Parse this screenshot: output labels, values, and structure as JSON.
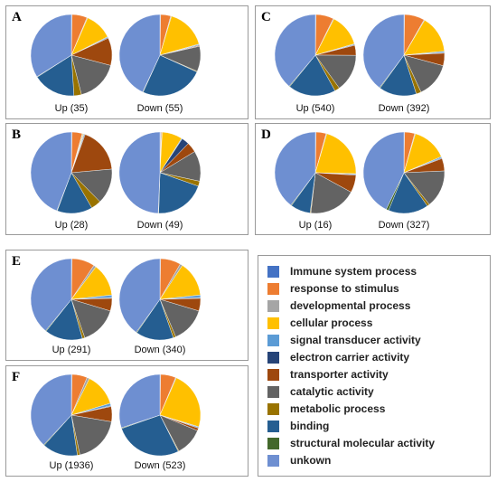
{
  "colors": [
    "#4472c4",
    "#ed7d31",
    "#a5a5a5",
    "#ffc000",
    "#5b9bd5",
    "#264478",
    "#9e480e",
    "#636363",
    "#997300",
    "#255e91",
    "#43682b",
    "#6e8fd1"
  ],
  "legend": {
    "items": [
      "Immune system process",
      "response to stimulus",
      "developmental process",
      "cellular process",
      "signal transducer activity",
      "electron carrier activity",
      "transporter activity",
      "catalytic activity",
      "metabolic process",
      "binding",
      "structural molecular activity",
      "unkown"
    ]
  },
  "chart_data": [
    {
      "type": "pie",
      "label": "A",
      "pies": [
        {
          "caption": "Up (35)",
          "values": [
            0.3,
            6,
            0.3,
            11,
            0.3,
            0.3,
            11,
            17,
            3,
            17,
            0.2,
            34
          ]
        },
        {
          "caption": "Down (55)",
          "values": [
            0.3,
            4,
            0.3,
            16,
            0.3,
            0.3,
            0.3,
            10,
            0.3,
            25,
            0.2,
            43
          ]
        }
      ]
    },
    {
      "type": "pie",
      "label": "B",
      "pies": [
        {
          "caption": "Up (28)",
          "values": [
            0.3,
            4,
            0.3,
            0.3,
            0.3,
            0.3,
            18,
            14,
            4,
            14,
            0.2,
            44
          ]
        },
        {
          "caption": "Down (49)",
          "values": [
            0.3,
            0.3,
            0.3,
            8,
            0.3,
            3,
            4,
            12,
            2,
            20,
            0.2,
            49
          ]
        }
      ]
    },
    {
      "type": "pie",
      "label": "C",
      "pies": [
        {
          "caption": "Up (540)",
          "values": [
            0.3,
            7,
            0.3,
            13,
            0.3,
            0.3,
            4,
            15,
            2,
            19,
            0.3,
            39
          ]
        },
        {
          "caption": "Down (392)",
          "values": [
            0.3,
            8,
            0.3,
            15,
            0.5,
            0.3,
            5,
            14,
            2,
            15,
            0.3,
            40
          ]
        }
      ]
    },
    {
      "type": "pie",
      "label": "D",
      "pies": [
        {
          "caption": "Up (16)",
          "values": [
            0.3,
            4,
            0.3,
            21,
            0.3,
            0.3,
            7,
            19,
            0.3,
            8,
            0.3,
            40
          ]
        },
        {
          "caption": "Down (327)",
          "values": [
            0.3,
            4,
            0.3,
            14,
            0.5,
            0.3,
            5,
            15,
            1,
            16,
            1,
            43
          ]
        }
      ]
    },
    {
      "type": "pie",
      "label": "E",
      "pies": [
        {
          "caption": "Up (291)",
          "values": [
            0.3,
            9,
            1,
            13,
            1,
            0.3,
            5,
            15,
            1,
            15,
            0.3,
            39
          ]
        },
        {
          "caption": "Down (340)",
          "values": [
            0.3,
            8,
            1,
            14,
            1,
            0.3,
            5,
            14,
            1,
            15,
            0.3,
            40
          ]
        }
      ]
    },
    {
      "type": "pie",
      "label": "F",
      "pies": [
        {
          "caption": "Up (1936)",
          "values": [
            0.3,
            6,
            1,
            13,
            1,
            0.3,
            6,
            19,
            1,
            14,
            0.3,
            38
          ]
        },
        {
          "caption": "Down (523)",
          "values": [
            0.3,
            6,
            0.3,
            23,
            0.3,
            0.3,
            1,
            11,
            0.3,
            27,
            0.3,
            30
          ]
        }
      ]
    }
  ]
}
